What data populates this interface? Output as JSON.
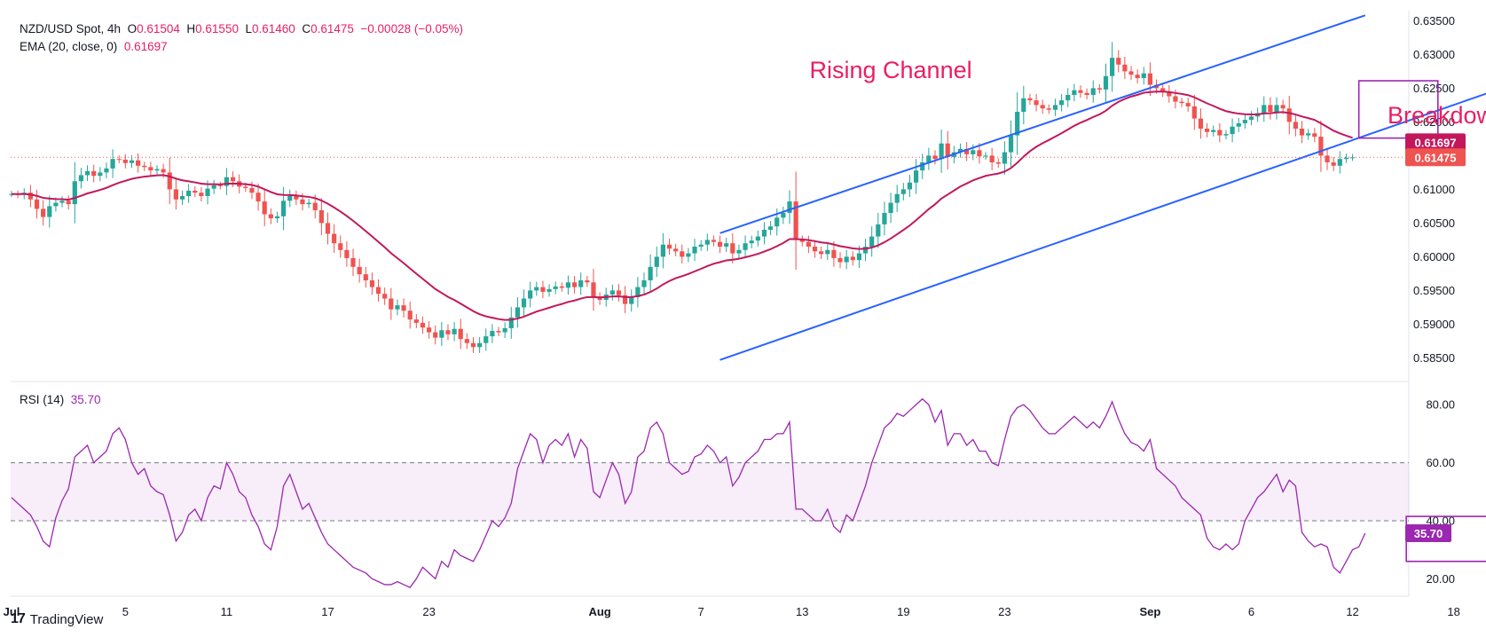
{
  "legend": {
    "symbol": "NZD/USD Spot, 4h",
    "open_label": "O",
    "open": "0.61504",
    "high_label": "H",
    "high": "0.61550",
    "low_label": "L",
    "low": "0.61460",
    "close_label": "C",
    "close": "0.61475",
    "change": "−0.00028 (−0.05%)",
    "ema_label": "EMA (20, close, 0)",
    "ema_value": "0.61697",
    "rsi_label": "RSI (14)",
    "rsi_value": "35.70"
  },
  "branding": {
    "logo_mark": "17",
    "logo_text": "TradingView"
  },
  "colors": {
    "up": "#26a69a",
    "down": "#ef5350",
    "ema": "#c2185b",
    "channel": "#2962ff",
    "rsi": "#9c27b0",
    "annotation": "#e91e63",
    "box": "#9c27b0"
  },
  "chart_data": [
    {
      "type": "candlestick",
      "title": "NZD/USD Spot, 4h",
      "ylim": [
        0.5815,
        0.6365
      ],
      "price_ticks": [
        "0.63500",
        "0.63000",
        "0.62500",
        "0.62000",
        "0.61500",
        "0.61000",
        "0.60500",
        "0.60000",
        "0.59500",
        "0.59000",
        "0.58500"
      ],
      "x_ticks": [
        "Jul",
        "5",
        "11",
        "17",
        "23",
        "Aug",
        "7",
        "13",
        "19",
        "23",
        "Sep",
        "6",
        "12",
        "18"
      ],
      "x_tick_pos": [
        0,
        18,
        34,
        50,
        66,
        93,
        109,
        125,
        141,
        157,
        180,
        196,
        212,
        228
      ],
      "closes": [
        0.6093,
        0.6092,
        0.6095,
        0.6085,
        0.6071,
        0.6059,
        0.6075,
        0.608,
        0.6083,
        0.6078,
        0.6112,
        0.6121,
        0.6127,
        0.612,
        0.6125,
        0.6131,
        0.6145,
        0.6144,
        0.6139,
        0.6143,
        0.6135,
        0.6133,
        0.6128,
        0.613,
        0.6125,
        0.61,
        0.6085,
        0.609,
        0.6098,
        0.6095,
        0.609,
        0.6101,
        0.6106,
        0.6105,
        0.6118,
        0.6112,
        0.6104,
        0.6102,
        0.6095,
        0.6082,
        0.6063,
        0.6057,
        0.606,
        0.6083,
        0.609,
        0.6085,
        0.6078,
        0.608,
        0.6069,
        0.605,
        0.6034,
        0.602,
        0.601,
        0.5998,
        0.5985,
        0.5974,
        0.5965,
        0.5955,
        0.5945,
        0.5938,
        0.5922,
        0.5928,
        0.592,
        0.5907,
        0.5902,
        0.5895,
        0.5888,
        0.588,
        0.5891,
        0.5885,
        0.5893,
        0.5878,
        0.5872,
        0.5866,
        0.5872,
        0.5882,
        0.589,
        0.5888,
        0.5894,
        0.591,
        0.5925,
        0.5938,
        0.595,
        0.5955,
        0.5948,
        0.5952,
        0.5956,
        0.5954,
        0.5962,
        0.5955,
        0.5965,
        0.5962,
        0.594,
        0.5936,
        0.5944,
        0.595,
        0.5943,
        0.593,
        0.594,
        0.5955,
        0.5965,
        0.5985,
        0.6,
        0.6018,
        0.6012,
        0.6008,
        0.6,
        0.6005,
        0.6015,
        0.6018,
        0.6025,
        0.6022,
        0.6015,
        0.602,
        0.6005,
        0.601,
        0.602,
        0.6024,
        0.603,
        0.604,
        0.6045,
        0.6058,
        0.6065,
        0.6082,
        0.6025,
        0.6022,
        0.6015,
        0.6008,
        0.6004,
        0.601,
        0.5998,
        0.5992,
        0.6,
        0.5995,
        0.6005,
        0.6015,
        0.603,
        0.6048,
        0.6065,
        0.608,
        0.6093,
        0.61,
        0.611,
        0.6128,
        0.614,
        0.615,
        0.6145,
        0.6168,
        0.6148,
        0.6155,
        0.616,
        0.6152,
        0.6158,
        0.6149,
        0.615,
        0.614,
        0.6138,
        0.6155,
        0.618,
        0.6215,
        0.6235,
        0.6232,
        0.6225,
        0.622,
        0.6218,
        0.6225,
        0.6232,
        0.624,
        0.6247,
        0.6243,
        0.624,
        0.625,
        0.6248,
        0.6268,
        0.6295,
        0.6285,
        0.6275,
        0.627,
        0.6265,
        0.6272,
        0.6255,
        0.625,
        0.6245,
        0.6238,
        0.623,
        0.6228,
        0.6223,
        0.6205,
        0.619,
        0.6185,
        0.6188,
        0.618,
        0.6182,
        0.6193,
        0.6198,
        0.6203,
        0.6208,
        0.6213,
        0.6225,
        0.6215,
        0.6225,
        0.622,
        0.62,
        0.619,
        0.618,
        0.6183,
        0.6178,
        0.615,
        0.614,
        0.6135,
        0.6145,
        0.6147,
        0.61475
      ],
      "ema_last": 0.61697,
      "last_close": 0.61475,
      "channel_upper": [
        [
          112,
          0.6035
        ],
        [
          214,
          0.6358
        ]
      ],
      "channel_lower": [
        [
          112,
          0.5847
        ],
        [
          235,
          0.6248
        ]
      ],
      "annotations": [
        {
          "text": "Rising Channel",
          "x": 139,
          "y": 0.6265
        },
        {
          "text": "Breakdown",
          "x": 227,
          "y": 0.6198
        }
      ],
      "highlight_box": {
        "x0": 213,
        "x1": 225.5,
        "y0": 0.6261,
        "y1": 0.6176
      }
    },
    {
      "type": "line",
      "title": "RSI (14)",
      "ylim": [
        14,
        88
      ],
      "y_ticks": [
        "80.00",
        "60.00",
        "40.00",
        "20.00"
      ],
      "band": [
        40,
        60
      ],
      "values": [
        48,
        46,
        44,
        42,
        38,
        33,
        31,
        41,
        47,
        51,
        62,
        64,
        66,
        60,
        62,
        64,
        70,
        72,
        68,
        60,
        56,
        58,
        52,
        50,
        49,
        42,
        33,
        36,
        42,
        44,
        40,
        48,
        52,
        51,
        60,
        56,
        50,
        48,
        42,
        38,
        32,
        30,
        38,
        52,
        56,
        50,
        44,
        46,
        41,
        36,
        32,
        30,
        28,
        26,
        24,
        23,
        22,
        20,
        19,
        18,
        18,
        19,
        18,
        17,
        20,
        24,
        22,
        20,
        26,
        24,
        30,
        28,
        27,
        26,
        30,
        35,
        40,
        38,
        41,
        46,
        58,
        64,
        70,
        68,
        60,
        66,
        68,
        66,
        70,
        62,
        68,
        65,
        50,
        48,
        54,
        60,
        56,
        46,
        50,
        62,
        64,
        72,
        74,
        70,
        60,
        58,
        56,
        57,
        62,
        63,
        66,
        64,
        60,
        62,
        52,
        55,
        60,
        62,
        64,
        68,
        68,
        70,
        70,
        74,
        44,
        44,
        42,
        40,
        40,
        44,
        38,
        36,
        42,
        40,
        46,
        52,
        60,
        66,
        72,
        74,
        77,
        76,
        78,
        80,
        82,
        80,
        74,
        78,
        66,
        70,
        70,
        66,
        68,
        64,
        64,
        60,
        59,
        68,
        76,
        79,
        80,
        78,
        75,
        72,
        70,
        70,
        72,
        74,
        76,
        74,
        72,
        74,
        72,
        76,
        81,
        75,
        70,
        67,
        66,
        64,
        68,
        58,
        56,
        54,
        52,
        48,
        46,
        44,
        42,
        34,
        31,
        30,
        32,
        30,
        32,
        40,
        44,
        48,
        50,
        53,
        56,
        50,
        54,
        52,
        36,
        33,
        31,
        32,
        31,
        24,
        22,
        26,
        30,
        31,
        35.7
      ],
      "last_value": 35.7,
      "highlight_box": {
        "x0": 220.5,
        "x1": 234,
        "y0": 41.5,
        "y1": 26
      }
    }
  ]
}
